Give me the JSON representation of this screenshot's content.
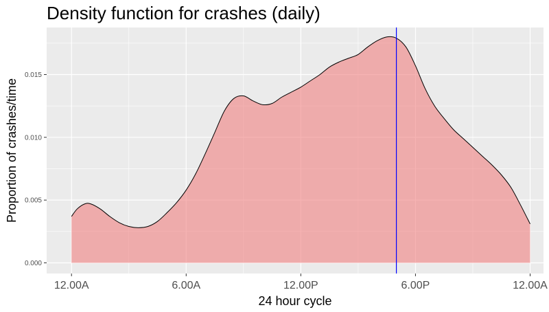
{
  "chart_data": {
    "type": "area",
    "title": "Density function for crashes (daily)",
    "xlabel": "24 hour cycle",
    "ylabel": "Proportion of crashes/time",
    "x_unit": "hour of day",
    "xlim": [
      -1.3,
      24.7
    ],
    "ylim": [
      -0.00085,
      0.01875
    ],
    "x_tick_values": [
      0,
      6,
      12,
      18,
      24
    ],
    "x_tick_labels": [
      "12.00A",
      "6.00A",
      "12.00P",
      "6.00P",
      "12.00A"
    ],
    "y_tick_values": [
      0,
      0.005,
      0.01,
      0.015
    ],
    "y_tick_labels": [
      "0.000",
      "0.005",
      "0.010",
      "0.015"
    ],
    "grid": true,
    "fill_color": "#f08080",
    "fill_opacity": 0.6,
    "line_color": "#000000",
    "background": "#ebebeb",
    "vline": {
      "x": 17.0,
      "color": "#0000ff"
    },
    "series": [
      {
        "x": [
          0,
          0.3,
          0.7,
          1,
          1.5,
          2,
          2.5,
          3,
          3.5,
          4,
          4.5,
          5,
          5.5,
          6,
          6.5,
          7,
          7.5,
          8,
          8.5,
          9,
          9.5,
          10,
          10.5,
          11,
          11.5,
          12,
          12.5,
          13,
          13.5,
          14,
          14.5,
          15,
          15.5,
          16,
          16.5,
          17,
          17.5,
          18,
          18.5,
          19,
          19.5,
          20,
          20.5,
          21,
          21.5,
          22,
          22.5,
          23,
          23.5,
          24
        ],
        "y": [
          0.0037,
          0.0043,
          0.0047,
          0.0047,
          0.0043,
          0.0037,
          0.0032,
          0.0029,
          0.0028,
          0.0029,
          0.0033,
          0.004,
          0.0048,
          0.0058,
          0.0071,
          0.0087,
          0.0104,
          0.0121,
          0.0131,
          0.0133,
          0.0129,
          0.0126,
          0.0127,
          0.0132,
          0.0136,
          0.014,
          0.0145,
          0.015,
          0.0156,
          0.016,
          0.0163,
          0.0166,
          0.0172,
          0.0177,
          0.018,
          0.0179,
          0.0172,
          0.0157,
          0.0139,
          0.0125,
          0.0115,
          0.0106,
          0.0099,
          0.0092,
          0.0085,
          0.0078,
          0.007,
          0.006,
          0.0046,
          0.0031
        ]
      }
    ]
  }
}
